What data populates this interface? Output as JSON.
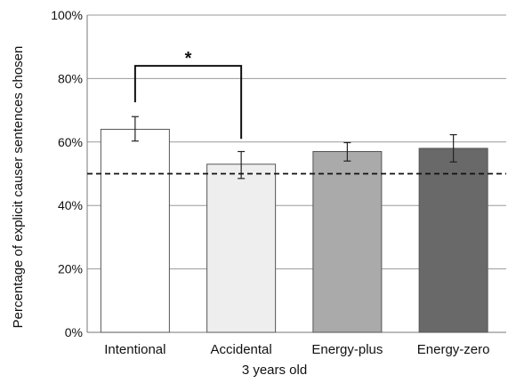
{
  "chart_data": {
    "type": "bar",
    "categories": [
      "Intentional",
      "Accidental",
      "Energy-plus",
      "Energy-zero"
    ],
    "values": [
      64,
      53,
      57,
      58
    ],
    "errors": [
      {
        "low": 60.3,
        "high": 68
      },
      {
        "low": 48.5,
        "high": 57
      },
      {
        "low": 54,
        "high": 59.8
      },
      {
        "low": 53.7,
        "high": 62.3
      }
    ],
    "bar_fills": [
      "#ffffff",
      "#eeeeee",
      "#aaaaaa",
      "#696969"
    ],
    "xlabel": "3 years old",
    "ylabel": "Percentage of explicit causer sentences chosen",
    "ylim": [
      0,
      100
    ],
    "yticks": [
      0,
      20,
      40,
      60,
      80,
      100
    ],
    "ytick_labels": [
      "0%",
      "20%",
      "40%",
      "60%",
      "80%",
      "100%"
    ],
    "grid": true,
    "reference_line": {
      "value": 50,
      "style": "dashed"
    },
    "significance": {
      "from": "Intentional",
      "to": "Accidental",
      "label": "*"
    }
  }
}
